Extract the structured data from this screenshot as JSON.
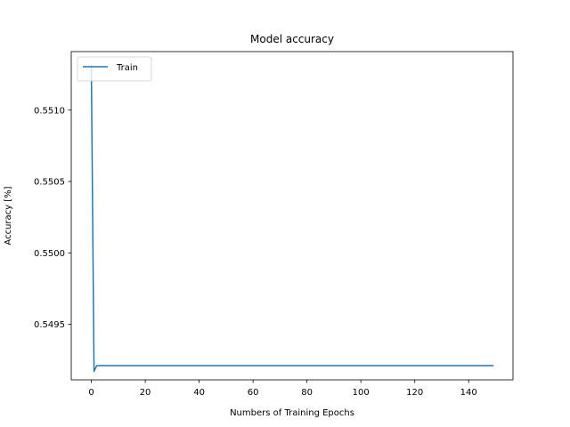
{
  "chart_data": {
    "type": "line",
    "title": "Model accuracy",
    "xlabel": "Numbers of Training Epochs",
    "ylabel": "Accuracy [%]",
    "xlim": [
      -7.45,
      156.45
    ],
    "ylim": [
      0.54911,
      0.55141
    ],
    "xticks": [
      0,
      20,
      40,
      60,
      80,
      100,
      120,
      140
    ],
    "xtick_labels": [
      "0",
      "20",
      "40",
      "60",
      "80",
      "100",
      "120",
      "140"
    ],
    "yticks": [
      0.5495,
      0.55,
      0.5505,
      0.551
    ],
    "ytick_labels": [
      "0.5495",
      "0.5500",
      "0.5505",
      "0.5510"
    ],
    "grid": false,
    "legend": {
      "location": "upper left",
      "entries": [
        "Train"
      ]
    },
    "series": [
      {
        "name": "Train",
        "color": "#1f77b4",
        "x": [
          0,
          1,
          2,
          149
        ],
        "y": [
          0.55131,
          0.54917,
          0.54921,
          0.54921
        ]
      }
    ]
  }
}
